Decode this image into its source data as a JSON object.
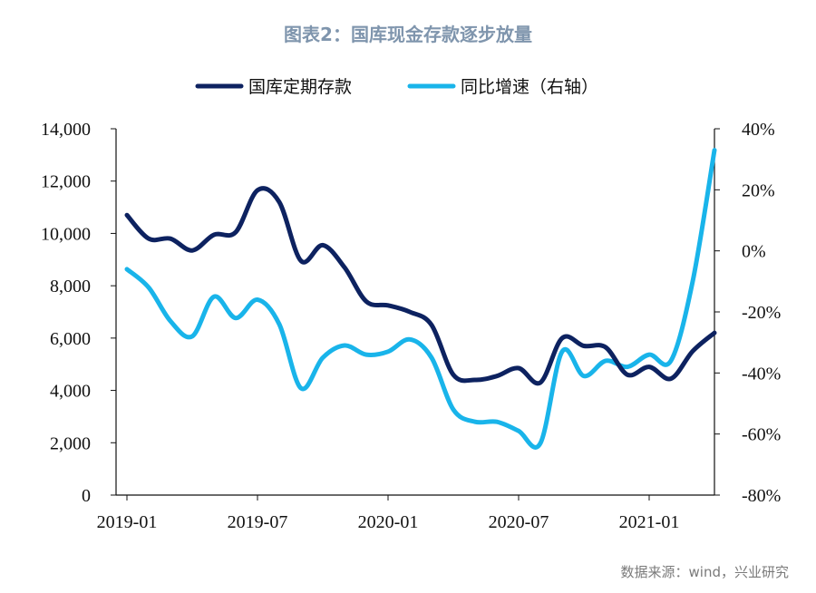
{
  "title": "图表2：国库现金存款逐步放量",
  "source": "数据来源：wind，兴业研究",
  "colors": {
    "deposits": "#0d2260",
    "growth": "#19b4ea",
    "title": "#7f95ad"
  },
  "chart_data": {
    "type": "line",
    "legend_position": "top",
    "grid": false,
    "x": [
      "2019-01",
      "2019-02",
      "2019-03",
      "2019-04",
      "2019-05",
      "2019-06",
      "2019-07",
      "2019-08",
      "2019-09",
      "2019-10",
      "2019-11",
      "2019-12",
      "2020-01",
      "2020-02",
      "2020-03",
      "2020-04",
      "2020-05",
      "2020-06",
      "2020-07",
      "2020-08",
      "2020-09",
      "2020-10",
      "2020-11",
      "2020-12",
      "2021-01",
      "2021-02",
      "2021-03",
      "2021-04"
    ],
    "x_tick_labels": [
      "2019-01",
      "2019-07",
      "2020-01",
      "2020-07",
      "2021-01"
    ],
    "y_left": {
      "lim": [
        0,
        14000
      ],
      "ticks": [
        "0",
        "2,000",
        "4,000",
        "6,000",
        "8,000",
        "10,000",
        "12,000",
        "14,000"
      ]
    },
    "y_right": {
      "lim": [
        -80,
        40
      ],
      "ticks": [
        "-80%",
        "-60%",
        "-40%",
        "-20%",
        "0%",
        "20%",
        "40%"
      ]
    },
    "series": [
      {
        "name": "国库定期存款",
        "axis": "left",
        "values": [
          10700,
          9800,
          9800,
          9350,
          9950,
          10050,
          11650,
          11200,
          8950,
          9550,
          8700,
          7400,
          7250,
          7000,
          6500,
          4600,
          4400,
          4550,
          4850,
          4300,
          6000,
          5700,
          5650,
          4600,
          4900,
          4450,
          5500,
          6200
        ]
      },
      {
        "name": "同比增速（右轴）",
        "axis": "right",
        "values": [
          -6,
          -12,
          -23,
          -28,
          -15,
          -22,
          -16,
          -24,
          -45,
          -35,
          -31,
          -34,
          -33,
          -29,
          -35,
          -52,
          -56,
          -56,
          -59,
          -63,
          -33,
          -41,
          -36,
          -38,
          -34,
          -36,
          -10,
          33
        ]
      }
    ]
  }
}
